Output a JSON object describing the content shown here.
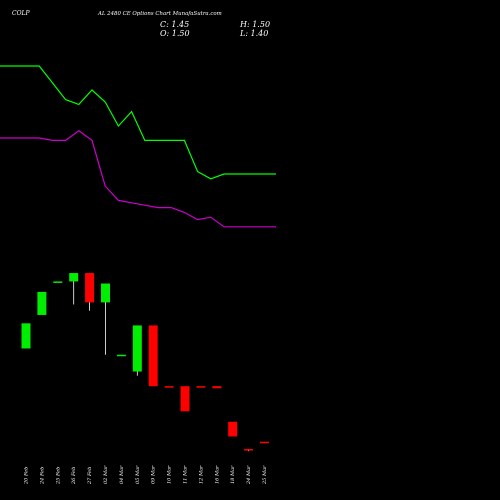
{
  "header": {
    "symbol": "COLP",
    "title": "AL 2480  CE Options  Chart MunafaSutra.com",
    "close_label": "C: 1.45",
    "high_label": "H: 1.50",
    "open_label": "O: 1.50",
    "low_label": "L: 1.40"
  },
  "colors": {
    "background": "#000000",
    "up_candle": "#00ee00",
    "down_candle": "#ff0000",
    "upper_line": "#00ff00",
    "lower_line": "#cc00cc",
    "wick": "#ffffff",
    "text": "#ffffff"
  },
  "chart_data": {
    "type": "candlestick",
    "x": [
      "20 Feb",
      "24 Feb",
      "25 Feb",
      "26 Feb",
      "27 Feb",
      "02 Mar",
      "04 Mar",
      "05 Mar",
      "09 Mar",
      "10 Mar",
      "11 Mar",
      "12 Mar",
      "16 Mar",
      "18 Mar",
      "24 Mar",
      "25 Mar"
    ],
    "candles": [
      {
        "date": "20 Feb",
        "open": 6.3,
        "high": 7.5,
        "low": 6.3,
        "close": 7.5
      },
      {
        "date": "24 Feb",
        "open": 7.9,
        "high": 9.0,
        "low": 7.9,
        "close": 9.0
      },
      {
        "date": "25 Feb",
        "open": 9.5,
        "high": 9.5,
        "low": 9.5,
        "close": 9.5
      },
      {
        "date": "26 Feb",
        "open": 9.5,
        "high": 9.9,
        "low": 8.4,
        "close": 9.9
      },
      {
        "date": "27 Feb",
        "open": 9.9,
        "high": 9.9,
        "low": 8.1,
        "close": 8.5
      },
      {
        "date": "02 Mar",
        "open": 8.5,
        "high": 9.4,
        "low": 6.0,
        "close": 9.4
      },
      {
        "date": "04 Mar",
        "open": 6.0,
        "high": 6.0,
        "low": 6.0,
        "close": 6.0
      },
      {
        "date": "05 Mar",
        "open": 5.2,
        "high": 7.4,
        "low": 5.0,
        "close": 7.4
      },
      {
        "date": "09 Mar",
        "open": 7.4,
        "high": 7.4,
        "low": 4.5,
        "close": 4.5
      },
      {
        "date": "10 Mar",
        "open": 4.5,
        "high": 4.5,
        "low": 4.5,
        "close": 4.5
      },
      {
        "date": "11 Mar",
        "open": 4.5,
        "high": 4.5,
        "low": 3.3,
        "close": 3.3
      },
      {
        "date": "12 Mar",
        "open": 4.5,
        "high": 4.5,
        "low": 4.5,
        "close": 4.5
      },
      {
        "date": "16 Mar",
        "open": 4.5,
        "high": 4.5,
        "low": 4.4,
        "close": 4.4
      },
      {
        "date": "18 Mar",
        "open": 2.8,
        "high": 2.8,
        "low": 2.1,
        "close": 2.1
      },
      {
        "date": "24 Mar",
        "open": 1.5,
        "high": 1.5,
        "low": 1.4,
        "close": 1.45
      },
      {
        "date": "25 Mar",
        "open": 1.85,
        "high": 1.85,
        "low": 1.85,
        "close": 1.85
      }
    ],
    "price_range": [
      0.5,
      11.0
    ],
    "series": [
      {
        "values": [
          0.85,
          0.85,
          0.78,
          0.71,
          0.69,
          0.75,
          0.7,
          0.6,
          0.66,
          0.54,
          0.54,
          0.54,
          0.54,
          0.41,
          0.38,
          0.4
        ]
      },
      {
        "values": [
          0.55,
          0.55,
          0.54,
          0.54,
          0.58,
          0.54,
          0.35,
          0.29,
          0.28,
          0.27,
          0.26,
          0.26,
          0.24,
          0.21,
          0.22,
          0.18
        ]
      }
    ],
    "indicator_range": [
      0,
      1
    ],
    "grid": false,
    "legend": "none"
  }
}
